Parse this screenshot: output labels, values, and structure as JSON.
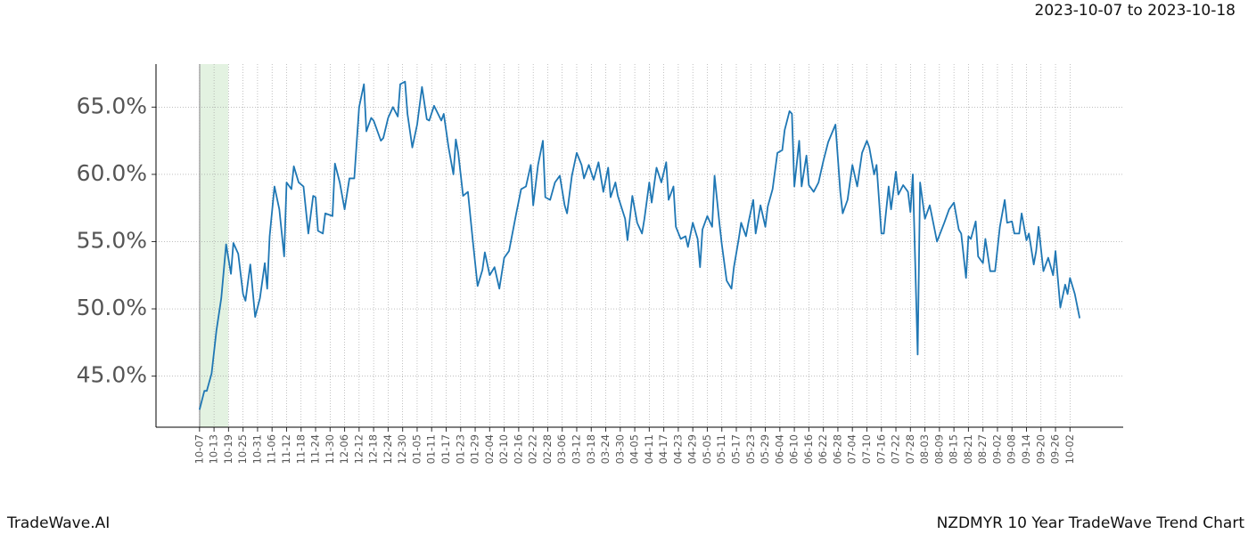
{
  "header": {
    "date_range": "2023-10-07 to 2023-10-18"
  },
  "footer": {
    "brand": "TradeWave.AI",
    "chart_name": "NZDMYR 10 Year TradeWave Trend Chart"
  },
  "chart_data": {
    "type": "line",
    "grid": true,
    "xlim": [
      -18,
      382
    ],
    "ylim": [
      41.2,
      68.2
    ],
    "yticks": [
      {
        "value": 45,
        "label": "45.0%"
      },
      {
        "value": 50,
        "label": "50.0%"
      },
      {
        "value": 55,
        "label": "55.0%"
      },
      {
        "value": 60,
        "label": "60.0%"
      },
      {
        "value": 65,
        "label": "65.0%"
      }
    ],
    "xticks": [
      {
        "value": 0,
        "label": "10-07"
      },
      {
        "value": 6,
        "label": "10-13"
      },
      {
        "value": 12,
        "label": "10-19"
      },
      {
        "value": 18,
        "label": "10-25"
      },
      {
        "value": 24,
        "label": "10-31"
      },
      {
        "value": 30,
        "label": "11-06"
      },
      {
        "value": 36,
        "label": "11-12"
      },
      {
        "value": 42,
        "label": "11-18"
      },
      {
        "value": 48,
        "label": "11-24"
      },
      {
        "value": 54,
        "label": "11-30"
      },
      {
        "value": 60,
        "label": "12-06"
      },
      {
        "value": 66,
        "label": "12-12"
      },
      {
        "value": 72,
        "label": "12-18"
      },
      {
        "value": 78,
        "label": "12-24"
      },
      {
        "value": 84,
        "label": "12-30"
      },
      {
        "value": 90,
        "label": "01-05"
      },
      {
        "value": 96,
        "label": "01-11"
      },
      {
        "value": 102,
        "label": "01-17"
      },
      {
        "value": 108,
        "label": "01-23"
      },
      {
        "value": 114,
        "label": "01-29"
      },
      {
        "value": 120,
        "label": "02-04"
      },
      {
        "value": 126,
        "label": "02-10"
      },
      {
        "value": 132,
        "label": "02-16"
      },
      {
        "value": 138,
        "label": "02-22"
      },
      {
        "value": 144,
        "label": "02-28"
      },
      {
        "value": 150,
        "label": "03-06"
      },
      {
        "value": 156,
        "label": "03-12"
      },
      {
        "value": 162,
        "label": "03-18"
      },
      {
        "value": 168,
        "label": "03-24"
      },
      {
        "value": 174,
        "label": "03-30"
      },
      {
        "value": 180,
        "label": "04-05"
      },
      {
        "value": 186,
        "label": "04-11"
      },
      {
        "value": 192,
        "label": "04-17"
      },
      {
        "value": 198,
        "label": "04-23"
      },
      {
        "value": 204,
        "label": "04-29"
      },
      {
        "value": 210,
        "label": "05-05"
      },
      {
        "value": 216,
        "label": "05-11"
      },
      {
        "value": 222,
        "label": "05-17"
      },
      {
        "value": 228,
        "label": "05-23"
      },
      {
        "value": 234,
        "label": "05-29"
      },
      {
        "value": 240,
        "label": "06-04"
      },
      {
        "value": 246,
        "label": "06-10"
      },
      {
        "value": 252,
        "label": "06-16"
      },
      {
        "value": 258,
        "label": "06-22"
      },
      {
        "value": 264,
        "label": "06-28"
      },
      {
        "value": 270,
        "label": "07-04"
      },
      {
        "value": 276,
        "label": "07-10"
      },
      {
        "value": 282,
        "label": "07-16"
      },
      {
        "value": 288,
        "label": "07-22"
      },
      {
        "value": 294,
        "label": "07-28"
      },
      {
        "value": 300,
        "label": "08-03"
      },
      {
        "value": 306,
        "label": "08-09"
      },
      {
        "value": 312,
        "label": "08-15"
      },
      {
        "value": 318,
        "label": "08-21"
      },
      {
        "value": 324,
        "label": "08-27"
      },
      {
        "value": 330,
        "label": "09-02"
      },
      {
        "value": 336,
        "label": "09-08"
      },
      {
        "value": 342,
        "label": "09-14"
      },
      {
        "value": 348,
        "label": "09-20"
      },
      {
        "value": 354,
        "label": "09-26"
      },
      {
        "value": 360,
        "label": "10-02"
      }
    ],
    "series": [
      {
        "color": "#1f77b4",
        "x": [
          0,
          2,
          3,
          5,
          7,
          9,
          11,
          13,
          14,
          16,
          18,
          19,
          21,
          23,
          25,
          27,
          28,
          29,
          31,
          33,
          35,
          36,
          38,
          39,
          41,
          43,
          45,
          47,
          48,
          49,
          51,
          52,
          55,
          56,
          58,
          60,
          62,
          64,
          66,
          68,
          69,
          71,
          72,
          75,
          76,
          78,
          80,
          82,
          83,
          85,
          86,
          88,
          90,
          92,
          94,
          95,
          97,
          100,
          101,
          103,
          105,
          106,
          107,
          109,
          111,
          113,
          115,
          117,
          118,
          120,
          122,
          124,
          126,
          128,
          131,
          133,
          135,
          137,
          138,
          140,
          142,
          143,
          145,
          147,
          149,
          151,
          152,
          154,
          156,
          158,
          159,
          161,
          163,
          165,
          167,
          169,
          170,
          172,
          173,
          176,
          177,
          179,
          181,
          183,
          184,
          186,
          187,
          189,
          191,
          193,
          194,
          196,
          197,
          199,
          201,
          202,
          204,
          206,
          207,
          208,
          210,
          212,
          213,
          215,
          216,
          218,
          220,
          221,
          223,
          224,
          226,
          227,
          229,
          230,
          232,
          234,
          235,
          237,
          239,
          241,
          242,
          244,
          245,
          246,
          248,
          249,
          251,
          252,
          254,
          256,
          258,
          260,
          263,
          265,
          266,
          268,
          270,
          272,
          274,
          276,
          277,
          279,
          280,
          282,
          283,
          285,
          286,
          288,
          289,
          291,
          293,
          294,
          295,
          297,
          298,
          300,
          302,
          304,
          305,
          308,
          310,
          312,
          314,
          315,
          317,
          318,
          319,
          321,
          322,
          324,
          325,
          327,
          329,
          331,
          333,
          334,
          336,
          337,
          339,
          340,
          342,
          343,
          345,
          346,
          347,
          349,
          351,
          353,
          354,
          356,
          358,
          359,
          360,
          362,
          364
        ],
        "values": [
          42.5,
          43.9,
          43.9,
          45.2,
          48.4,
          50.8,
          54.8,
          52.6,
          54.9,
          54.1,
          51.1,
          50.6,
          53.3,
          49.4,
          50.8,
          53.4,
          51.5,
          55.4,
          59.1,
          57.4,
          53.9,
          59.4,
          58.9,
          60.6,
          59.4,
          59.1,
          55.6,
          58.4,
          58.3,
          55.8,
          55.6,
          57.1,
          56.9,
          60.8,
          59.4,
          57.4,
          59.7,
          59.7,
          65.0,
          66.7,
          63.2,
          64.2,
          64.0,
          62.5,
          62.7,
          64.2,
          65.0,
          64.3,
          66.7,
          66.9,
          64.5,
          62.0,
          63.7,
          66.5,
          64.1,
          64.0,
          65.1,
          64.0,
          64.5,
          62.0,
          60.0,
          62.6,
          61.6,
          58.4,
          58.7,
          55.1,
          51.7,
          52.9,
          54.2,
          52.5,
          53.1,
          51.5,
          53.8,
          54.3,
          57.1,
          58.9,
          59.1,
          60.7,
          57.7,
          60.7,
          62.5,
          58.3,
          58.1,
          59.4,
          59.9,
          57.7,
          57.1,
          59.9,
          61.6,
          60.7,
          59.7,
          60.7,
          59.6,
          60.9,
          58.7,
          60.5,
          58.3,
          59.4,
          58.4,
          56.7,
          55.1,
          58.4,
          56.4,
          55.6,
          56.7,
          59.4,
          57.9,
          60.5,
          59.4,
          60.9,
          58.1,
          59.1,
          56.1,
          55.2,
          55.4,
          54.6,
          56.4,
          55.2,
          53.1,
          55.9,
          56.9,
          56.1,
          59.9,
          56.4,
          54.8,
          52.1,
          51.5,
          53.1,
          55.2,
          56.4,
          55.4,
          56.4,
          58.1,
          55.6,
          57.7,
          56.1,
          57.6,
          58.9,
          61.6,
          61.8,
          63.3,
          64.7,
          64.5,
          59.1,
          62.5,
          59.1,
          61.4,
          59.2,
          58.7,
          59.4,
          61.0,
          62.4,
          63.7,
          58.7,
          57.1,
          58.1,
          60.7,
          59.1,
          61.6,
          62.5,
          62.0,
          60.0,
          60.7,
          55.6,
          55.6,
          59.1,
          57.4,
          60.2,
          58.5,
          59.2,
          58.7,
          57.2,
          60.0,
          46.6,
          59.4,
          56.7,
          57.7,
          55.9,
          55.0,
          56.4,
          57.4,
          57.9,
          55.9,
          55.6,
          52.3,
          55.4,
          55.2,
          56.5,
          53.9,
          53.4,
          55.2,
          52.8,
          52.8,
          56.1,
          58.1,
          56.4,
          56.5,
          55.6,
          55.6,
          57.1,
          55.1,
          55.6,
          53.3,
          54.3,
          56.1,
          52.8,
          53.8,
          52.5,
          54.3,
          50.1,
          51.8,
          51.1,
          52.3,
          51.1,
          49.3
        ]
      }
    ]
  }
}
